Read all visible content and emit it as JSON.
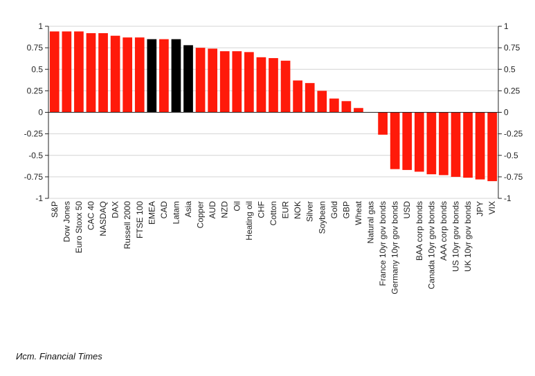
{
  "chart_data": {
    "type": "bar",
    "title": "",
    "xlabel": "",
    "ylabel": "",
    "ylim": [
      -1,
      1
    ],
    "yticks": [
      1,
      0.75,
      0.5,
      0.25,
      0,
      -0.25,
      -0.5,
      -0.75,
      -1
    ],
    "ytick_labels": [
      "1",
      "0.75",
      "0.5",
      "0.25",
      "0",
      "-0.25",
      "-0.5",
      "-0.75",
      "-1"
    ],
    "y_axes": "both",
    "grid": true,
    "legend": "none",
    "colors": {
      "default": "#ff1a0a",
      "highlight": "#000000",
      "grid": "#d4d4d4",
      "axis": "#222222"
    },
    "categories": [
      "S&P",
      "Dow Jones",
      "Euro Stoxx 50",
      "CAC 40",
      "NASDAQ",
      "DAX",
      "Russell 2000",
      "FTSE 100",
      "EMEA",
      "CAD",
      "Latam",
      "Asia",
      "Copper",
      "AUD",
      "NZD",
      "Oil",
      "Heating oil",
      "CHF",
      "Cotton",
      "EUR",
      "NOK",
      "Silver",
      "Soybean",
      "Gold",
      "GBP",
      "Wheat",
      "Natural gas",
      "France 10yr gov bonds",
      "Germany 10yr gov bonds",
      "USD",
      "BAA corp bonds",
      "Canada 10yr gov bonds",
      "AAA corp bonds",
      "US 10yr gov bonds",
      "UK 10yr gov bonds",
      "JPY",
      "VIX"
    ],
    "values": [
      0.94,
      0.94,
      0.94,
      0.92,
      0.92,
      0.89,
      0.87,
      0.87,
      0.85,
      0.85,
      0.85,
      0.78,
      0.75,
      0.74,
      0.71,
      0.71,
      0.7,
      0.64,
      0.63,
      0.6,
      0.37,
      0.34,
      0.25,
      0.16,
      0.13,
      0.05,
      0.0,
      -0.26,
      -0.66,
      -0.67,
      -0.69,
      -0.72,
      -0.73,
      -0.75,
      -0.76,
      -0.78,
      -0.8
    ],
    "highlighted": [
      "EMEA",
      "Latam",
      "Asia"
    ]
  },
  "source_note": "Исm. Financial Times"
}
